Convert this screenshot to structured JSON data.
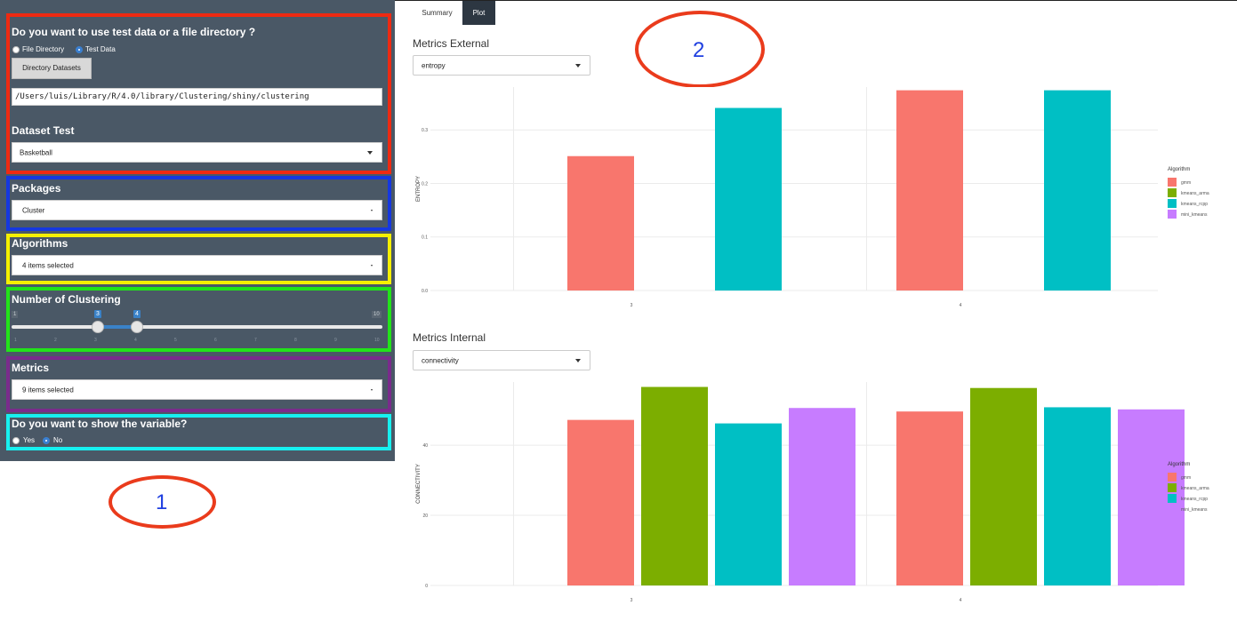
{
  "sidebar": {
    "data_source_question": "Do you want to use test data or a file directory ?",
    "radio_file_directory": "File Directory",
    "radio_test_data": "Test Data",
    "directory_button": "Directory Datasets",
    "path_value": "/Users/luis/Library/R/4.0/library/Clustering/shiny/clustering",
    "dataset_label": "Dataset Test",
    "dataset_value": "Basketball",
    "packages_label": "Packages",
    "packages_value": "Cluster",
    "algorithms_label": "Algorithms",
    "algorithms_value": "4 items selected",
    "clustering_label": "Number of Clustering",
    "slider_min": "1",
    "slider_max": "10",
    "slider_low": "3",
    "slider_high": "4",
    "slider_ticks": [
      "1",
      "2",
      "3",
      "4",
      "5",
      "6",
      "7",
      "8",
      "9",
      "10"
    ],
    "metrics_label": "Metrics",
    "metrics_value": "9 items selected",
    "variable_question": "Do you want to show the variable?",
    "radio_yes": "Yes",
    "radio_no": "No"
  },
  "tabs": {
    "summary": "Summary",
    "plot": "Plot"
  },
  "annotations": {
    "one": "1",
    "two": "2"
  },
  "colors": {
    "gmm": "#f8766d",
    "kmeans_arma": "#7cae00",
    "kmeans_rcpp": "#00bfc4",
    "mini_kmeans": "#c77cff",
    "box_red": "#ee2a12",
    "box_blue": "#1538e0",
    "box_yellow": "#f5f000",
    "box_green": "#22e31a",
    "box_purple": "#7a2b8c",
    "box_cyan": "#17f0f0"
  },
  "external": {
    "title": "Metrics External",
    "select_value": "entropy"
  },
  "internal": {
    "title": "Metrics Internal",
    "select_value": "connectivity"
  },
  "chart_data": [
    {
      "type": "bar",
      "ylabel": "ENTROPY",
      "categories": [
        "3",
        "4"
      ],
      "legend_title": "Algorithm",
      "legend_position": "right",
      "ylim": [
        0,
        0.38
      ],
      "yticks": [
        "0.0",
        "0.1",
        "0.2",
        "0.3"
      ],
      "series": [
        {
          "name": "gmm",
          "values": [
            0.251,
            0.374
          ]
        },
        {
          "name": "kmeans_arma",
          "values": [
            0,
            0
          ]
        },
        {
          "name": "kmeans_rcpp",
          "values": [
            0.341,
            0.374
          ]
        },
        {
          "name": "mini_kmeans",
          "values": [
            0,
            0
          ]
        }
      ]
    },
    {
      "type": "bar",
      "ylabel": "CONNECTIVITY",
      "categories": [
        "3",
        "4"
      ],
      "legend_title": "Algorithm",
      "legend_position": "right",
      "ylim": [
        0,
        58
      ],
      "yticks": [
        "0",
        "20",
        "40"
      ],
      "series": [
        {
          "name": "gmm",
          "values": [
            47.2,
            49.6
          ]
        },
        {
          "name": "kmeans_arma",
          "values": [
            56.6,
            56.3
          ]
        },
        {
          "name": "kmeans_rcpp",
          "values": [
            46.2,
            50.8
          ]
        },
        {
          "name": "mini_kmeans",
          "values": [
            50.6,
            50.2
          ]
        }
      ]
    }
  ]
}
